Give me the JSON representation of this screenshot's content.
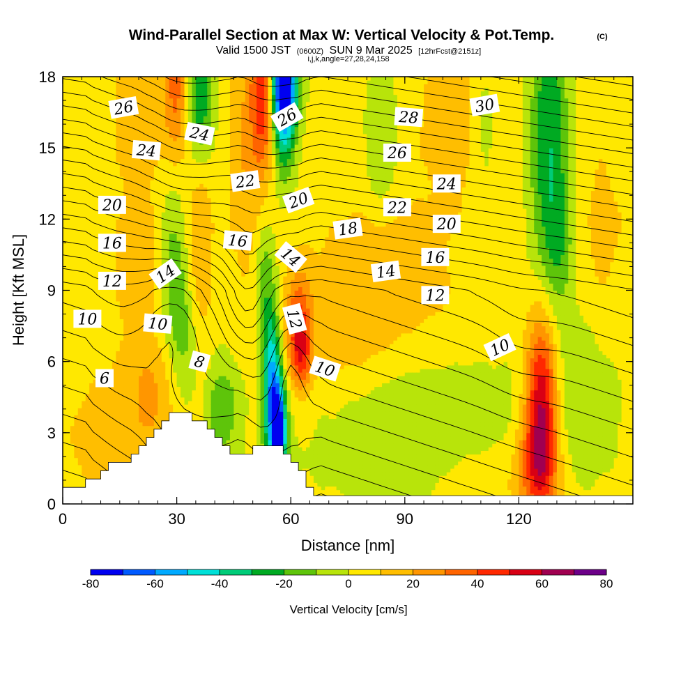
{
  "chart_data": {
    "type": "heatmap",
    "title": "Wind-Parallel Section at Max W: Vertical Velocity & Pot.Temp.",
    "copyright_mark": "(C)",
    "subtitle_parts": {
      "valid_text": "Valid 1500 JST",
      "utc_text": "(0600Z)",
      "date_text": "SUN 9 Mar 2025",
      "forecast_text": "[12hrFcst@2151z]"
    },
    "indices_line": "i,j,k,angle=27,28,24,158",
    "xlabel": "Distance [nm]",
    "ylabel": "Height [Kft MSL]",
    "xlim": [
      0,
      150
    ],
    "ylim": [
      0,
      18
    ],
    "x_ticks": [
      0,
      30,
      60,
      90,
      120
    ],
    "y_ticks": [
      0,
      3,
      6,
      9,
      12,
      15,
      18
    ],
    "colorbar": {
      "label": "Vertical Velocity [cm/s]",
      "ticks": [
        -80,
        -60,
        -40,
        -20,
        0,
        20,
        40,
        60,
        80
      ],
      "levels": [
        -80,
        -70,
        -60,
        -50,
        -40,
        -30,
        -20,
        -10,
        0,
        10,
        20,
        30,
        40,
        50,
        60,
        70,
        80
      ],
      "colors": [
        "#0000f0",
        "#005aff",
        "#00aaff",
        "#00e0d8",
        "#00cc78",
        "#00aa22",
        "#5ec40a",
        "#b8e40a",
        "#ffe800",
        "#ffbe00",
        "#ff9600",
        "#ff6400",
        "#ff2800",
        "#d80014",
        "#a00050",
        "#6c0088"
      ]
    },
    "velocity_features": [
      {
        "x": 126,
        "y": 4.3,
        "w": 62,
        "sx": 3.0,
        "sy": 2.6
      },
      {
        "x": 125,
        "y": 1.5,
        "w": 30,
        "sx": 4.0,
        "sy": 1.5
      },
      {
        "x": 62,
        "y": 7.5,
        "w": 34,
        "sx": 2.2,
        "sy": 1.6
      },
      {
        "x": 63,
        "y": 6.2,
        "w": 22,
        "sx": 2.0,
        "sy": 1.0
      },
      {
        "x": 55,
        "y": 4.8,
        "w": -58,
        "sx": 1.6,
        "sy": 2.4
      },
      {
        "x": 57,
        "y": 3.0,
        "w": -70,
        "sx": 1.4,
        "sy": 1.5
      },
      {
        "x": 53,
        "y": 9.5,
        "w": -18,
        "sx": 1.8,
        "sy": 2.0
      },
      {
        "x": 58,
        "y": 17.3,
        "w": -62,
        "sx": 2.2,
        "sy": 2.2
      },
      {
        "x": 58,
        "y": 18.0,
        "w": -45,
        "sx": 3.0,
        "sy": 1.5
      },
      {
        "x": 36,
        "y": 17.2,
        "w": -40,
        "sx": 2.5,
        "sy": 2.3
      },
      {
        "x": 36,
        "y": 12.0,
        "w": 18,
        "sx": 2.5,
        "sy": 3.5
      },
      {
        "x": 53,
        "y": 17.5,
        "w": 48,
        "sx": 2.3,
        "sy": 2.5
      },
      {
        "x": 48,
        "y": 15.0,
        "w": 16,
        "sx": 3.0,
        "sy": 4.0
      },
      {
        "x": 30,
        "y": 17.5,
        "w": 28,
        "sx": 2.5,
        "sy": 2.0
      },
      {
        "x": 29,
        "y": 10.0,
        "w": -20,
        "sx": 2.6,
        "sy": 2.5
      },
      {
        "x": 32,
        "y": 7.0,
        "w": -15,
        "sx": 2.5,
        "sy": 2.0
      },
      {
        "x": 42,
        "y": 4.0,
        "w": -22,
        "sx": 3.0,
        "sy": 1.5
      },
      {
        "x": 23,
        "y": 4.5,
        "w": 18,
        "sx": 5.0,
        "sy": 1.8
      },
      {
        "x": 10,
        "y": 2.8,
        "w": 12,
        "sx": 6.0,
        "sy": 2.0
      },
      {
        "x": 20,
        "y": 16.5,
        "w": 11,
        "sx": 6.0,
        "sy": 2.5
      },
      {
        "x": 20,
        "y": 10.0,
        "w": 12,
        "sx": 5.0,
        "sy": 2.0
      },
      {
        "x": 73,
        "y": 7.0,
        "w": 12,
        "sx": 10.0,
        "sy": 2.5
      },
      {
        "x": 90,
        "y": 7.8,
        "w": 10,
        "sx": 14.0,
        "sy": 2.0
      },
      {
        "x": 90,
        "y": 3.8,
        "w": -14,
        "sx": 22.0,
        "sy": 2.6
      },
      {
        "x": 135,
        "y": 4.5,
        "w": -12,
        "sx": 8.0,
        "sy": 2.5
      },
      {
        "x": 128,
        "y": 15.5,
        "w": -34,
        "sx": 3.5,
        "sy": 4.5
      },
      {
        "x": 131,
        "y": 11.0,
        "w": -14,
        "sx": 3.0,
        "sy": 2.0
      },
      {
        "x": 103,
        "y": 16.0,
        "w": 11,
        "sx": 8.0,
        "sy": 3.0
      },
      {
        "x": 84,
        "y": 15.5,
        "w": -14,
        "sx": 3.0,
        "sy": 2.5
      },
      {
        "x": 111,
        "y": 16.0,
        "w": -12,
        "sx": 3.0,
        "sy": 2.5
      },
      {
        "x": 84,
        "y": 11.0,
        "w": 8,
        "sx": 10.0,
        "sy": 1.5
      },
      {
        "x": 142,
        "y": 11.5,
        "w": 9,
        "sx": 5.0,
        "sy": 3.0
      },
      {
        "x": 110,
        "y": 1.0,
        "w": 8,
        "sx": 8.0,
        "sy": 1.0
      }
    ],
    "terrain": [
      [
        0,
        0.65
      ],
      [
        6,
        0.65
      ],
      [
        7,
        1.0
      ],
      [
        10,
        1.3
      ],
      [
        13,
        1.6
      ],
      [
        19,
        2.05
      ],
      [
        22,
        2.6
      ],
      [
        25,
        3.0
      ],
      [
        27,
        3.5
      ],
      [
        31,
        3.85
      ],
      [
        35,
        3.6
      ],
      [
        38,
        3.3
      ],
      [
        42,
        2.7
      ],
      [
        44,
        2.4
      ],
      [
        46,
        2.0
      ],
      [
        49,
        2.0
      ],
      [
        51,
        2.55
      ],
      [
        55,
        2.55
      ],
      [
        59,
        2.0
      ],
      [
        62,
        1.6
      ],
      [
        64,
        1.0
      ],
      [
        66,
        0.6
      ],
      [
        68,
        0.3
      ],
      [
        150,
        0.3
      ]
    ],
    "theta_min": 2,
    "theta_max": 34,
    "theta_step": 1,
    "contour_labels": [
      {
        "text": "26",
        "x": 16,
        "y": 16.7,
        "angle": 10
      },
      {
        "text": "24",
        "x": 22,
        "y": 14.9,
        "angle": -5
      },
      {
        "text": "24",
        "x": 36,
        "y": 15.6,
        "angle": -12
      },
      {
        "text": "20",
        "x": 13,
        "y": 12.6,
        "angle": 0
      },
      {
        "text": "16",
        "x": 13,
        "y": 11.0,
        "angle": 0
      },
      {
        "text": "12",
        "x": 13,
        "y": 9.4,
        "angle": 0
      },
      {
        "text": "10",
        "x": 6.5,
        "y": 7.8,
        "angle": 0
      },
      {
        "text": "6",
        "x": 11,
        "y": 5.3,
        "angle": 0
      },
      {
        "text": "14",
        "x": 27,
        "y": 9.7,
        "angle": 35
      },
      {
        "text": "10",
        "x": 25,
        "y": 7.6,
        "angle": -5
      },
      {
        "text": "8",
        "x": 36,
        "y": 6.0,
        "angle": -15
      },
      {
        "text": "22",
        "x": 48,
        "y": 13.6,
        "angle": 8
      },
      {
        "text": "16",
        "x": 46,
        "y": 11.1,
        "angle": -5
      },
      {
        "text": "26",
        "x": 59,
        "y": 16.3,
        "angle": 30
      },
      {
        "text": "20",
        "x": 62,
        "y": 12.8,
        "angle": 20
      },
      {
        "text": "14",
        "x": 60,
        "y": 10.4,
        "angle": -40
      },
      {
        "text": "12",
        "x": 61,
        "y": 7.8,
        "angle": -75
      },
      {
        "text": "10",
        "x": 69,
        "y": 5.7,
        "angle": -18
      },
      {
        "text": "18",
        "x": 75,
        "y": 11.6,
        "angle": 8
      },
      {
        "text": "14",
        "x": 85,
        "y": 9.8,
        "angle": 8
      },
      {
        "text": "28",
        "x": 91,
        "y": 16.3,
        "angle": -4
      },
      {
        "text": "26",
        "x": 88,
        "y": 14.8,
        "angle": 0
      },
      {
        "text": "22",
        "x": 88,
        "y": 12.5,
        "angle": 0
      },
      {
        "text": "30",
        "x": 111,
        "y": 16.8,
        "angle": 10
      },
      {
        "text": "24",
        "x": 101,
        "y": 13.5,
        "angle": 0
      },
      {
        "text": "20",
        "x": 101,
        "y": 11.8,
        "angle": 0
      },
      {
        "text": "16",
        "x": 98,
        "y": 10.4,
        "angle": 0
      },
      {
        "text": "12",
        "x": 98,
        "y": 8.8,
        "angle": 0
      },
      {
        "text": "10",
        "x": 115,
        "y": 6.6,
        "angle": 25
      }
    ],
    "grid": false,
    "legend": "colorbar-bottom"
  }
}
